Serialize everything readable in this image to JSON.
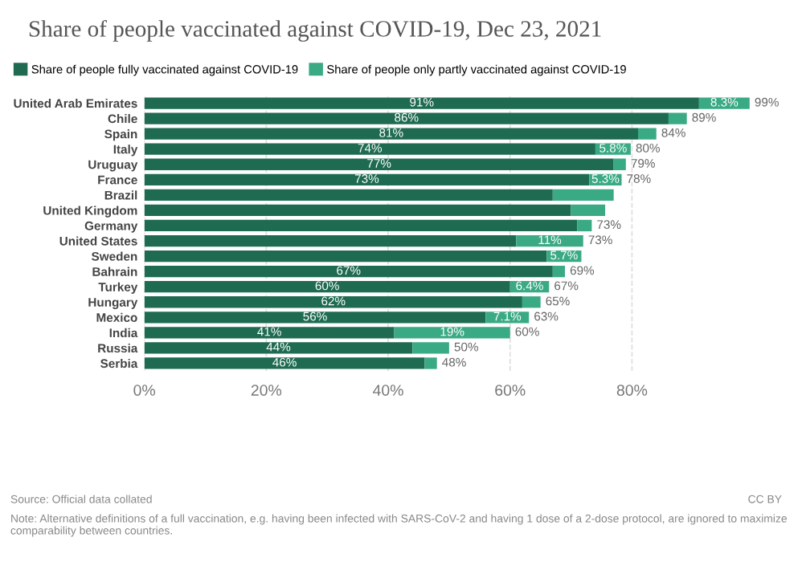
{
  "chart_data": {
    "type": "bar",
    "orientation": "horizontal",
    "stacked": true,
    "title": "Share of people vaccinated against COVID-19, Dec 23, 2021",
    "categories": [
      "United Arab Emirates",
      "Chile",
      "Spain",
      "Italy",
      "Uruguay",
      "France",
      "Brazil",
      "United Kingdom",
      "Germany",
      "United States",
      "Sweden",
      "Bahrain",
      "Turkey",
      "Hungary",
      "Mexico",
      "India",
      "Russia",
      "Serbia"
    ],
    "series": [
      {
        "name": "Share of people fully vaccinated against COVID-19",
        "color": "#1f6b52",
        "values": [
          91,
          86,
          81,
          74,
          77,
          73,
          67,
          70,
          71,
          61,
          66,
          67,
          60,
          62,
          56,
          41,
          44,
          46
        ],
        "value_labels": [
          "91%",
          "86%",
          "81%",
          "74%",
          "77%",
          "73%",
          null,
          null,
          null,
          null,
          null,
          "67%",
          "60%",
          "62%",
          "56%",
          "41%",
          "44%",
          "46%"
        ]
      },
      {
        "name": "Share of people only partly vaccinated against COVID-19",
        "color": "#3aaa85",
        "values": [
          8.3,
          3,
          3,
          5.8,
          2,
          5.3,
          10,
          5.6,
          2.4,
          11,
          5.7,
          2,
          6.4,
          3,
          7.1,
          19,
          6,
          2
        ],
        "value_labels": [
          "8.3%",
          null,
          null,
          "5.8%",
          null,
          "5.3%",
          null,
          null,
          null,
          "11%",
          "5.7%",
          null,
          "6.4%",
          null,
          "7.1%",
          "19%",
          null,
          null
        ]
      }
    ],
    "totals": [
      "99%",
      "89%",
      "84%",
      "80%",
      "79%",
      "78%",
      null,
      null,
      "73%",
      "73%",
      null,
      "69%",
      "67%",
      "65%",
      "63%",
      "60%",
      "50%",
      "48%"
    ],
    "xlim": [
      0,
      100
    ],
    "xticks": [
      {
        "value": 0,
        "label": "0%"
      },
      {
        "value": 20,
        "label": "20%"
      },
      {
        "value": 40,
        "label": "40%"
      },
      {
        "value": 60,
        "label": "60%"
      },
      {
        "value": 80,
        "label": "80%"
      }
    ],
    "grid": "x",
    "legend": "top",
    "annotations": [
      "Source: Official data collated",
      "CC BY",
      "Note: Alternative definitions of a full vaccination, e.g. having been infected with SARS-CoV-2 and having 1 dose of a 2-dose protocol, are ignored to maximize comparability between countries."
    ]
  }
}
